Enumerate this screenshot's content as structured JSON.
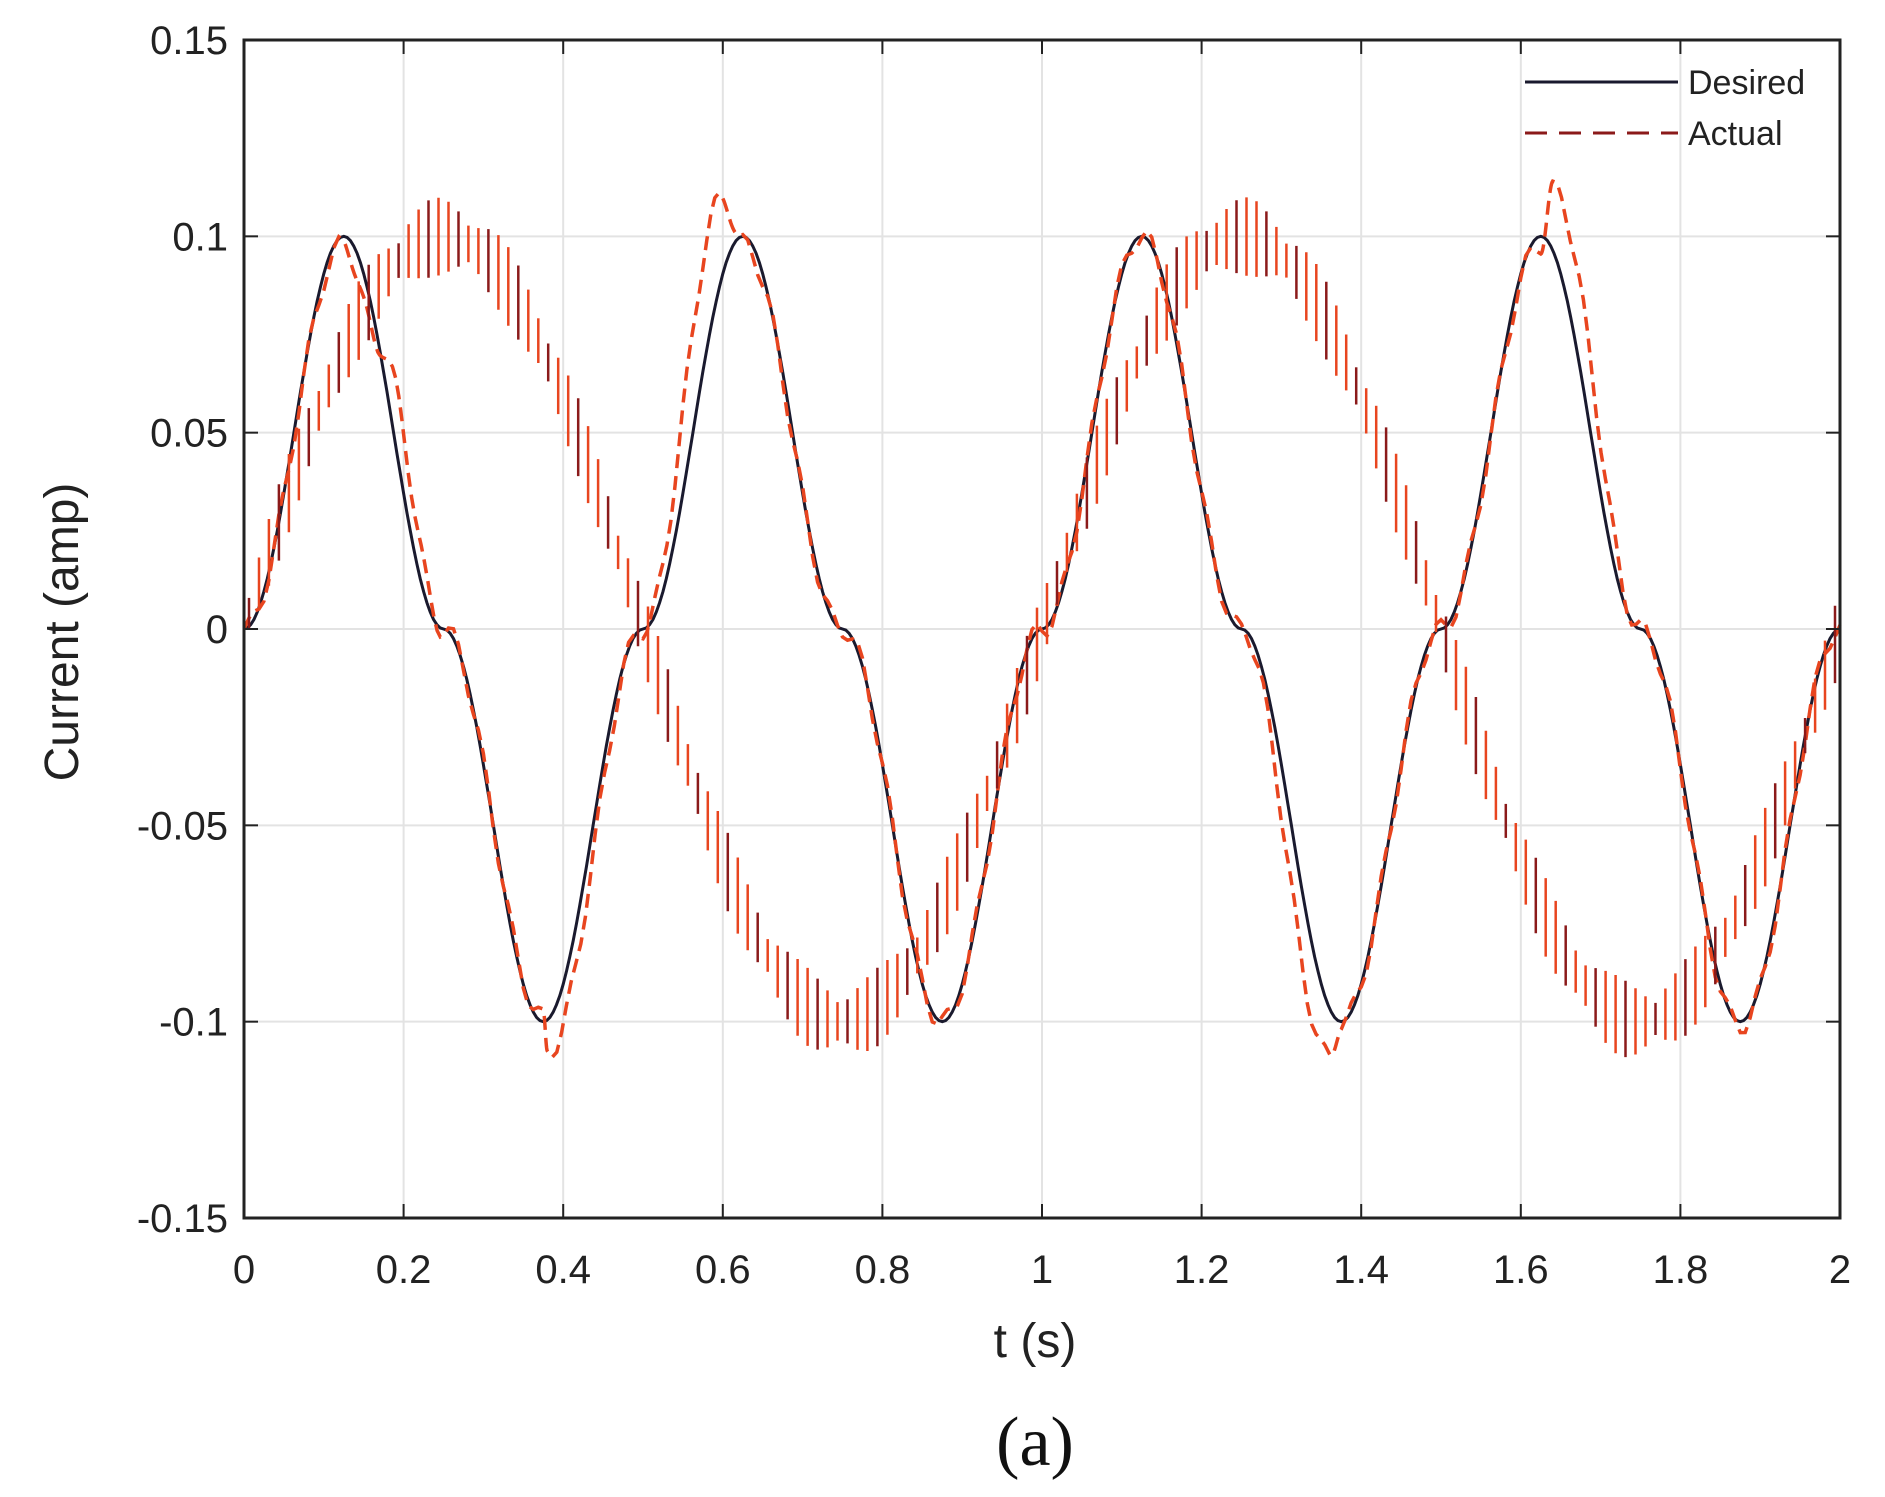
{
  "chart_data": {
    "type": "line",
    "xlabel": "t (s)",
    "ylabel": "Current (amp)",
    "xlim": [
      0,
      2
    ],
    "ylim": [
      -0.15,
      0.15
    ],
    "xticks": [
      0,
      0.2,
      0.4,
      0.6,
      0.8,
      1,
      1.2,
      1.4,
      1.6,
      1.8,
      2
    ],
    "xtick_labels": [
      "0",
      "0.2",
      "0.4",
      "0.6",
      "0.8",
      "1",
      "1.2",
      "1.4",
      "1.6",
      "1.8",
      "2"
    ],
    "yticks": [
      -0.15,
      -0.1,
      -0.05,
      0,
      0.05,
      0.1,
      0.15
    ],
    "ytick_labels": [
      "-0.15",
      "-0.1",
      "-0.05",
      "0",
      "0.05",
      "0.1",
      "0.15"
    ],
    "grid": true,
    "legend_position": "top-right",
    "series": [
      {
        "name": "Desired",
        "style": "solid",
        "color": "#1a1a2e",
        "x": [
          0,
          0.125,
          0.25,
          0.375,
          0.5,
          0.625,
          0.75,
          0.875,
          1.0,
          1.125,
          1.25,
          1.375,
          1.5,
          1.625,
          1.75,
          1.875,
          2.0
        ],
        "y": [
          0,
          0.1,
          0,
          -0.1,
          0,
          0.1,
          0,
          -0.1,
          0,
          0.1,
          0,
          -0.1,
          0,
          0.1,
          0,
          -0.1,
          0
        ]
      },
      {
        "name": "Actual",
        "style": "dashed",
        "color": "#8b1a1a",
        "x": [
          0,
          0.125,
          0.17,
          0.25,
          0.375,
          0.38,
          0.5,
          0.6,
          0.625,
          0.75,
          0.875,
          1.0,
          1.125,
          1.25,
          1.36,
          1.375,
          1.5,
          1.625,
          1.64,
          1.75,
          1.875,
          2.0
        ],
        "y": [
          0,
          0.098,
          0.072,
          0,
          -0.099,
          -0.108,
          0,
          0.11,
          0.098,
          0,
          -0.1,
          0,
          0.1,
          0,
          -0.109,
          -0.1,
          0,
          0.098,
          0.112,
          0,
          -0.101,
          0
        ]
      }
    ]
  },
  "caption": "(a)"
}
